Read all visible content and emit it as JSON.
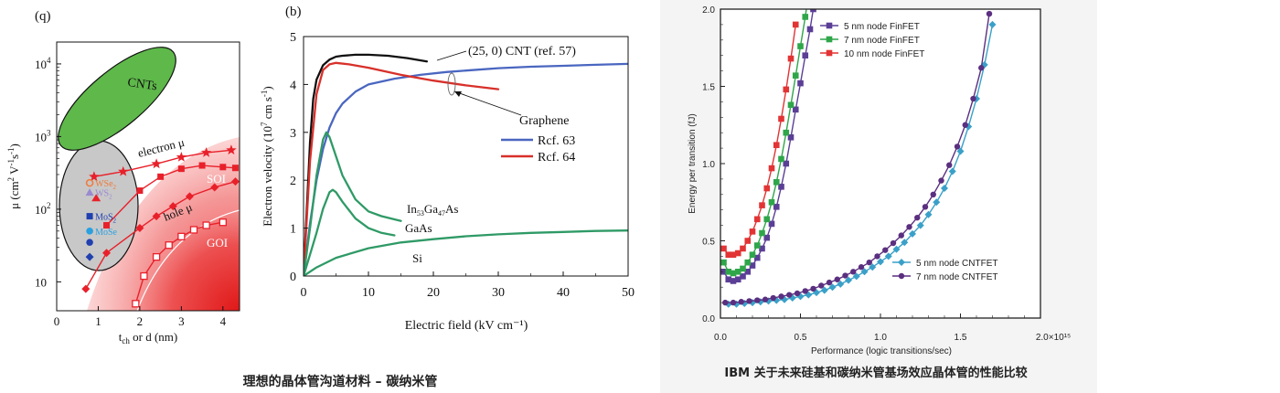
{
  "captions": {
    "left": "理想的晶体管沟道材料 – 碳纳米管",
    "right": "IBM 关于未来硅基和碳纳米管基场效应晶体管的性能比较"
  },
  "colors": {
    "green_ellipse": "#5eb84a",
    "gray_ellipse": "#c8c8c8",
    "red": "#e8202a",
    "black": "#111111",
    "blue": "#4a66c0",
    "red_curve": "#d8302a",
    "teal": "#2f9a66",
    "purple": "#5b3f96",
    "green_fin": "#2fa64a",
    "red_fin": "#e23434",
    "cyan": "#3aa0c8",
    "purple_cnt": "#5b2f80"
  },
  "chart_data": [
    {
      "type": "scatter",
      "panel_label": "(q)",
      "xlabel": {
        "main": "t",
        "sub": "ch",
        "rest": " or d (nm)"
      },
      "ylabel": {
        "pre": "μ (cm",
        "sup1": "2",
        "mid": " V",
        "sup2": "-1",
        "mid2": "s",
        "sup3": "-1",
        "post": ")"
      },
      "xlim": [
        0,
        4.4
      ],
      "ylim_log": [
        4,
        20000
      ],
      "xticks": [
        0,
        1,
        2,
        3,
        4
      ],
      "yticks": [
        {
          "value": 10,
          "base": "10",
          "exp": ""
        },
        {
          "value": 100,
          "base": "10",
          "exp": "2"
        },
        {
          "value": 1000,
          "base": "10",
          "exp": "3"
        },
        {
          "value": 10000,
          "base": "10",
          "exp": "4"
        }
      ],
      "regions": [
        {
          "name": "CNTs",
          "label": "CNTs"
        },
        {
          "name": "SOI",
          "label": "SOI"
        },
        {
          "name": "GOI",
          "label": "GOI"
        }
      ],
      "series": [
        {
          "name": "electron μ",
          "label": "electron μ",
          "marker": "star",
          "color": "red",
          "x": [
            0.9,
            1.6,
            2.4,
            3.0,
            3.6,
            4.2
          ],
          "y": [
            280,
            330,
            420,
            520,
            600,
            650
          ]
        },
        {
          "name": "SOI",
          "marker": "square-filled",
          "color": "red",
          "x": [
            1.2,
            2.0,
            2.5,
            3.0,
            3.5,
            4.0,
            4.3
          ],
          "y": [
            60,
            180,
            280,
            360,
            400,
            380,
            370
          ]
        },
        {
          "name": "hole μ",
          "label": "hole μ",
          "marker": "diamond-filled",
          "color": "red",
          "x": [
            0.7,
            1.2,
            2.0,
            2.4,
            2.8,
            3.2,
            3.8,
            4.3
          ],
          "y": [
            8,
            25,
            55,
            80,
            110,
            150,
            200,
            240
          ]
        },
        {
          "name": "GOI",
          "marker": "square-open",
          "color": "red",
          "x": [
            1.9,
            2.1,
            2.4,
            2.7,
            3.0,
            3.3,
            3.6,
            4.0
          ],
          "y": [
            5,
            12,
            22,
            32,
            42,
            52,
            60,
            66
          ]
        }
      ],
      "materials": [
        {
          "label": "WSe",
          "sub": "2",
          "color": "#f07a3a",
          "x": 0.75,
          "y": 230,
          "marker": "circle-open"
        },
        {
          "label": "WS",
          "sub": "2",
          "color": "#9a8ad0",
          "x": 0.75,
          "y": 170,
          "marker": "triangle"
        },
        {
          "label": "MoS",
          "sub": "2",
          "color": "#2040b0",
          "x": 0.75,
          "y": 80,
          "marker": "square"
        },
        {
          "label": "MoSe",
          "sub": "",
          "color": "#2aa0e0",
          "x": 0.75,
          "y": 50,
          "marker": "circle"
        },
        {
          "label": "",
          "sub": "",
          "color": "#2040b0",
          "x": 0.75,
          "y": 35,
          "marker": "circle"
        },
        {
          "label": "",
          "sub": "",
          "color": "#2040b0",
          "x": 0.75,
          "y": 22,
          "marker": "diamond"
        }
      ]
    },
    {
      "type": "line",
      "panel_label": "(b)",
      "xlabel": "Electric field (kV cm⁻¹)",
      "ylabel": {
        "pre": "Electron velocity (10",
        "sup1": "7",
        "mid": " cm s",
        "sup2": "-1",
        "post": ")"
      },
      "xlim": [
        0,
        50
      ],
      "ylim": [
        0,
        5
      ],
      "xticks": [
        0,
        10,
        20,
        30,
        40,
        50
      ],
      "yticks": [
        0,
        1,
        2,
        3,
        4,
        5
      ],
      "annotations": {
        "cnt": "(25, 0) CNT (ref. 57)",
        "graphene": "Graphene",
        "ref63": "Rcf. 63",
        "ref64": "Rcf. 64",
        "ingaas": {
          "pre": "In",
          "s1": "53",
          "mid": "Ga",
          "s2": "47",
          "post": "As"
        },
        "gaas": "GaAs",
        "si": "Si"
      },
      "series": [
        {
          "name": "(25, 0) CNT",
          "color": "black",
          "x": [
            0,
            0.5,
            1,
            1.5,
            2,
            3,
            4,
            5,
            6,
            8,
            10,
            13,
            16,
            19
          ],
          "y": [
            0,
            1.4,
            2.8,
            3.7,
            4.1,
            4.4,
            4.52,
            4.58,
            4.6,
            4.62,
            4.62,
            4.6,
            4.55,
            4.48
          ]
        },
        {
          "name": "Rcf. 63",
          "color": "blue",
          "x": [
            0,
            1,
            2,
            3,
            4,
            5,
            6,
            8,
            10,
            14,
            18,
            22,
            26,
            30,
            35,
            40,
            45,
            50
          ],
          "y": [
            0,
            1.1,
            2.0,
            2.65,
            3.1,
            3.4,
            3.6,
            3.85,
            4.0,
            4.12,
            4.2,
            4.26,
            4.3,
            4.34,
            4.37,
            4.39,
            4.41,
            4.43
          ]
        },
        {
          "name": "Rcf. 64",
          "color": "red_curve",
          "x": [
            0,
            1,
            2,
            3,
            4,
            5,
            7,
            10,
            15,
            20,
            25,
            30
          ],
          "y": [
            0,
            2.4,
            3.8,
            4.3,
            4.42,
            4.45,
            4.42,
            4.35,
            4.2,
            4.08,
            3.98,
            3.9
          ]
        },
        {
          "name": "In53Ga47As",
          "color": "teal",
          "x": [
            0,
            1,
            2,
            3,
            3.5,
            4,
            5,
            6,
            8,
            10,
            12,
            15
          ],
          "y": [
            0,
            1.0,
            2.1,
            2.85,
            3.0,
            2.9,
            2.5,
            2.1,
            1.6,
            1.35,
            1.25,
            1.15
          ]
        },
        {
          "name": "GaAs",
          "color": "teal",
          "x": [
            0,
            1,
            2,
            3,
            4,
            4.5,
            5,
            6,
            8,
            10,
            12,
            14
          ],
          "y": [
            0,
            0.45,
            0.9,
            1.4,
            1.75,
            1.8,
            1.75,
            1.55,
            1.2,
            1.0,
            0.9,
            0.85
          ]
        },
        {
          "name": "Si",
          "color": "teal",
          "x": [
            0,
            2,
            5,
            10,
            15,
            20,
            25,
            30,
            35,
            40,
            45,
            50
          ],
          "y": [
            0,
            0.18,
            0.38,
            0.58,
            0.7,
            0.77,
            0.83,
            0.87,
            0.9,
            0.92,
            0.94,
            0.95
          ]
        }
      ]
    },
    {
      "type": "line",
      "xlabel": "Performance (logic transitions/sec)",
      "ylabel": "Energy per transition (fJ)",
      "xlim": [
        0,
        2.0
      ],
      "ylim": [
        0,
        2.0
      ],
      "xticks": [
        {
          "v": 0,
          "t": "0.0"
        },
        {
          "v": 0.5,
          "t": "0.5"
        },
        {
          "v": 1.0,
          "t": "1.0"
        },
        {
          "v": 1.5,
          "t": "1.5"
        },
        {
          "v": 2.0,
          "t": "2.0×10¹⁵"
        }
      ],
      "yticks": [
        {
          "v": 0,
          "t": "0.0"
        },
        {
          "v": 0.5,
          "t": "0.5"
        },
        {
          "v": 1.0,
          "t": "1.0"
        },
        {
          "v": 1.5,
          "t": "1.5"
        },
        {
          "v": 2.0,
          "t": "2.0"
        }
      ],
      "legend_top": [
        "5 nm node FinFET",
        "7 nm node FinFET",
        "10 nm node FinFET"
      ],
      "legend_bottom": [
        "5 nm node CNTFET",
        "7 nm node CNTFET"
      ],
      "series": [
        {
          "name": "5 nm node FinFET",
          "color": "purple",
          "marker": "square",
          "x": [
            0.02,
            0.05,
            0.08,
            0.11,
            0.14,
            0.17,
            0.2,
            0.23,
            0.26,
            0.29,
            0.32,
            0.35,
            0.38,
            0.41,
            0.44,
            0.47,
            0.5,
            0.53,
            0.56,
            0.58,
            0.61
          ],
          "y": [
            0.3,
            0.25,
            0.24,
            0.25,
            0.27,
            0.3,
            0.34,
            0.39,
            0.45,
            0.52,
            0.61,
            0.72,
            0.85,
            1.0,
            1.17,
            1.35,
            1.52,
            1.7,
            1.87,
            2.0,
            2.2
          ]
        },
        {
          "name": "7 nm node FinFET",
          "color": "green_fin",
          "marker": "square",
          "x": [
            0.02,
            0.05,
            0.08,
            0.11,
            0.14,
            0.17,
            0.2,
            0.23,
            0.26,
            0.29,
            0.32,
            0.35,
            0.38,
            0.41,
            0.44,
            0.47,
            0.5,
            0.53,
            0.55
          ],
          "y": [
            0.36,
            0.3,
            0.29,
            0.3,
            0.32,
            0.36,
            0.41,
            0.47,
            0.55,
            0.64,
            0.75,
            0.88,
            1.03,
            1.2,
            1.38,
            1.57,
            1.76,
            1.95,
            2.1
          ]
        },
        {
          "name": "10 nm node FinFET",
          "color": "red_fin",
          "marker": "square",
          "x": [
            0.02,
            0.05,
            0.08,
            0.11,
            0.14,
            0.17,
            0.2,
            0.23,
            0.26,
            0.29,
            0.32,
            0.35,
            0.38,
            0.41,
            0.44,
            0.47
          ],
          "y": [
            0.45,
            0.41,
            0.41,
            0.42,
            0.45,
            0.5,
            0.56,
            0.64,
            0.73,
            0.84,
            0.97,
            1.12,
            1.29,
            1.48,
            1.68,
            1.9
          ]
        },
        {
          "name": "5 nm node CNTFET",
          "color": "cyan",
          "marker": "diamond",
          "x": [
            0.05,
            0.1,
            0.15,
            0.2,
            0.25,
            0.3,
            0.35,
            0.4,
            0.45,
            0.5,
            0.55,
            0.6,
            0.65,
            0.7,
            0.75,
            0.8,
            0.85,
            0.9,
            0.95,
            1.0,
            1.05,
            1.1,
            1.15,
            1.2,
            1.25,
            1.3,
            1.35,
            1.4,
            1.45,
            1.5,
            1.55,
            1.6,
            1.65,
            1.7
          ],
          "y": [
            0.09,
            0.09,
            0.095,
            0.1,
            0.105,
            0.11,
            0.115,
            0.12,
            0.13,
            0.14,
            0.15,
            0.165,
            0.18,
            0.2,
            0.22,
            0.245,
            0.27,
            0.3,
            0.33,
            0.365,
            0.4,
            0.445,
            0.49,
            0.545,
            0.6,
            0.67,
            0.75,
            0.84,
            0.95,
            1.08,
            1.24,
            1.42,
            1.64,
            1.9
          ]
        },
        {
          "name": "7 nm node CNTFET",
          "color": "purple_cnt",
          "marker": "circle",
          "x": [
            0.03,
            0.08,
            0.13,
            0.18,
            0.23,
            0.28,
            0.33,
            0.38,
            0.43,
            0.48,
            0.53,
            0.58,
            0.63,
            0.68,
            0.73,
            0.78,
            0.83,
            0.88,
            0.93,
            0.98,
            1.03,
            1.08,
            1.13,
            1.18,
            1.23,
            1.28,
            1.33,
            1.38,
            1.43,
            1.48,
            1.53,
            1.58,
            1.63,
            1.68
          ],
          "y": [
            0.1,
            0.1,
            0.105,
            0.11,
            0.115,
            0.12,
            0.13,
            0.14,
            0.15,
            0.16,
            0.175,
            0.19,
            0.21,
            0.23,
            0.25,
            0.275,
            0.3,
            0.33,
            0.36,
            0.4,
            0.44,
            0.485,
            0.535,
            0.59,
            0.65,
            0.72,
            0.8,
            0.89,
            0.99,
            1.11,
            1.25,
            1.42,
            1.62,
            1.97
          ]
        }
      ]
    }
  ]
}
